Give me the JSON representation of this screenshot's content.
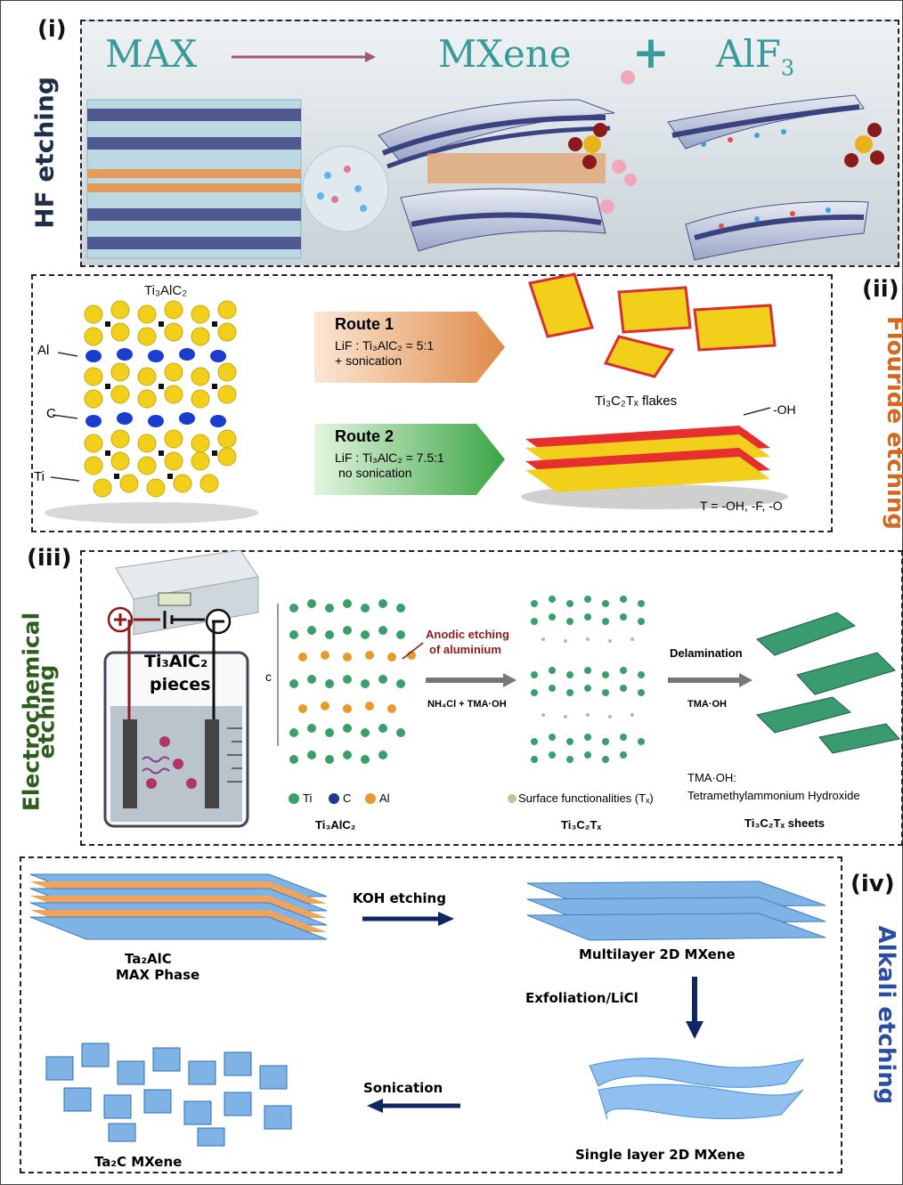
{
  "panel_i": {
    "tag": "(i)",
    "side_label": "HF etching",
    "title_max": "MAX",
    "title_mxene": "MXene",
    "title_plus": "+",
    "title_alf3_base": "AlF",
    "title_alf3_sub": "3"
  },
  "panel_ii": {
    "tag": "(ii)",
    "side_label": "Flouride etching",
    "crystal_label": "Ti₃AlC₂",
    "label_al": "Al",
    "label_c": "C",
    "label_ti": "Ti",
    "route1": {
      "title": "Route 1",
      "line1": "LiF : Ti₃AlC₂ = 5:1",
      "line2": "+ sonication"
    },
    "route2": {
      "title": "Route 2",
      "line1": "LiF : Ti₃AlC₂ = 7.5:1",
      "line2": "no sonication"
    },
    "flakes_label": "Ti₃C₂Tₓ flakes",
    "oh_label": "-OH",
    "t_label": "T = -OH, -F, -O"
  },
  "panel_iii": {
    "tag": "(iii)",
    "side_label_line1": "Electrochemical",
    "side_label_line2": "etching",
    "pieces_line1": "Ti₃AlC₂",
    "pieces_line2": "pieces",
    "c_axis": "c",
    "anodic_line1": "Anodic etching",
    "anodic_line2": "of aluminium",
    "step1_reagent": "NH₄Cl + TMA·OH",
    "delamination": "Delamination",
    "step2_reagent": "TMA·OH",
    "legend_ti": "Ti",
    "legend_c": "C",
    "legend_al": "Al",
    "surface_func": "Surface functionalities (Tₓ)",
    "tma_def_line1": "TMA·OH:",
    "tma_def_line2": "Tetramethylammonium Hydroxide",
    "caption1": "Ti₃AlC₂",
    "caption2": "Ti₃C₂Tₓ",
    "caption3": "Ti₃C₂Tₓ  sheets"
  },
  "panel_iv": {
    "tag": "(iv)",
    "side_label": "Alkali etching",
    "koh": "KOH etching",
    "max_line1": "Ta₂AlC",
    "max_line2": "MAX Phase",
    "multilayer": "Multilayer 2D MXene",
    "exfoliation": "Exfoliation/LiCl",
    "sonication": "Sonication",
    "ta2c": "Ta₂C MXene",
    "single": "Single layer 2D MXene"
  },
  "colors": {
    "teal_title": "#3a9a9a",
    "navy_label": "#1f2f4a",
    "orange_label": "#d2691e",
    "green_label": "#2e5e1e",
    "blue_label": "#2a4fa0",
    "dark_red": "#8b1a1a",
    "yellow_atom": "#f2cf1a",
    "blue_atom": "#1a3ccf",
    "navy_arrow": "#0f2660"
  }
}
